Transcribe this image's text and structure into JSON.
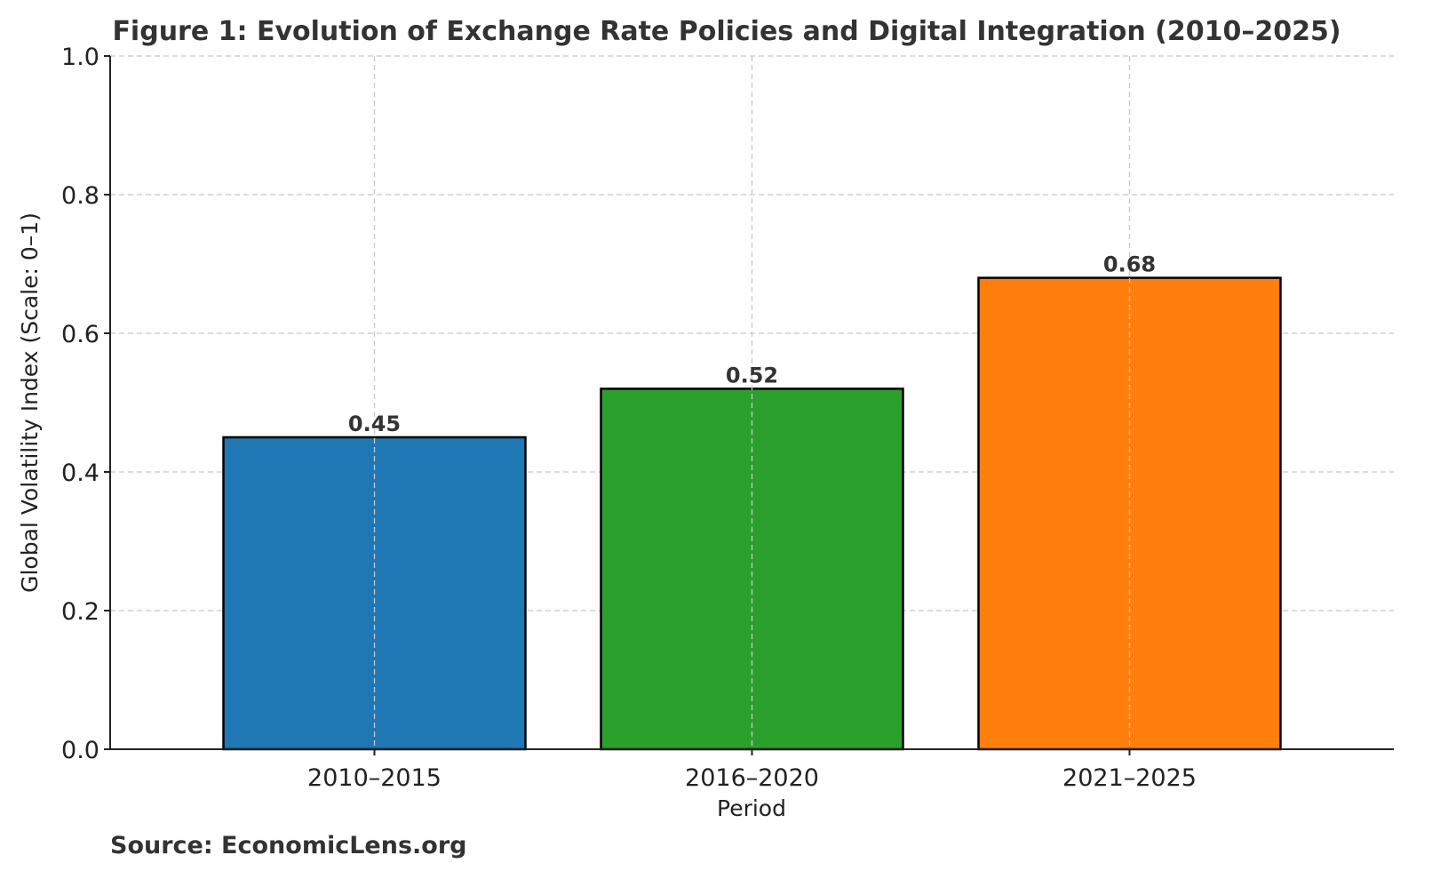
{
  "chart_data": {
    "type": "bar",
    "title": "Figure 1: Evolution of Exchange Rate Policies and Digital Integration (2010–2025)",
    "xlabel": "Period",
    "ylabel": "Global Volatility Index (Scale: 0–1)",
    "categories": [
      "2010–2015",
      "2016–2020",
      "2021–2025"
    ],
    "values": [
      0.45,
      0.52,
      0.68
    ],
    "data_labels": [
      "0.45",
      "0.52",
      "0.68"
    ],
    "colors": [
      "#1f77b4",
      "#2ca02c",
      "#ff7f0e"
    ],
    "ylim": [
      0,
      1.0
    ],
    "yticks": [
      "0.0",
      "0.2",
      "0.4",
      "0.6",
      "0.8",
      "1.0"
    ],
    "grid": true,
    "source": "Source: EconomicLens.org"
  }
}
